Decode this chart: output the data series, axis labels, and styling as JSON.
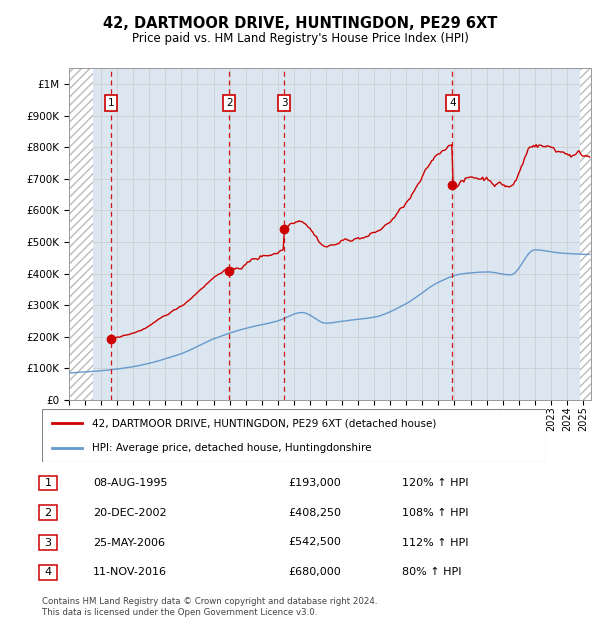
{
  "title": "42, DARTMOOR DRIVE, HUNTINGDON, PE29 6XT",
  "subtitle": "Price paid vs. HM Land Registry's House Price Index (HPI)",
  "legend_line1": "42, DARTMOOR DRIVE, HUNTINGDON, PE29 6XT (detached house)",
  "legend_line2": "HPI: Average price, detached house, Huntingdonshire",
  "footer1": "Contains HM Land Registry data © Crown copyright and database right 2024.",
  "footer2": "This data is licensed under the Open Government Licence v3.0.",
  "sales": [
    {
      "num": 1,
      "date": "08-AUG-1995",
      "price": 193000,
      "year": 1995.6,
      "pct": "120% ↑ HPI"
    },
    {
      "num": 2,
      "date": "20-DEC-2002",
      "price": 408250,
      "year": 2002.97,
      "pct": "108% ↑ HPI"
    },
    {
      "num": 3,
      "date": "25-MAY-2006",
      "price": 542500,
      "year": 2006.4,
      "pct": "112% ↑ HPI"
    },
    {
      "num": 4,
      "date": "11-NOV-2016",
      "price": 680000,
      "year": 2016.87,
      "pct": "80% ↑ HPI"
    }
  ],
  "hpi_color": "#6699cc",
  "price_color": "#cc0000",
  "grid_color": "#cccccc",
  "plot_bg": "#dce6f0",
  "ylim": [
    0,
    1050000
  ],
  "yticks": [
    0,
    100000,
    200000,
    300000,
    400000,
    500000,
    600000,
    700000,
    800000,
    900000,
    1000000
  ],
  "xlim_start": 1993,
  "xlim_end": 2025.5,
  "hatch_left_end": 1994.5,
  "hatch_right_start": 2024.83
}
